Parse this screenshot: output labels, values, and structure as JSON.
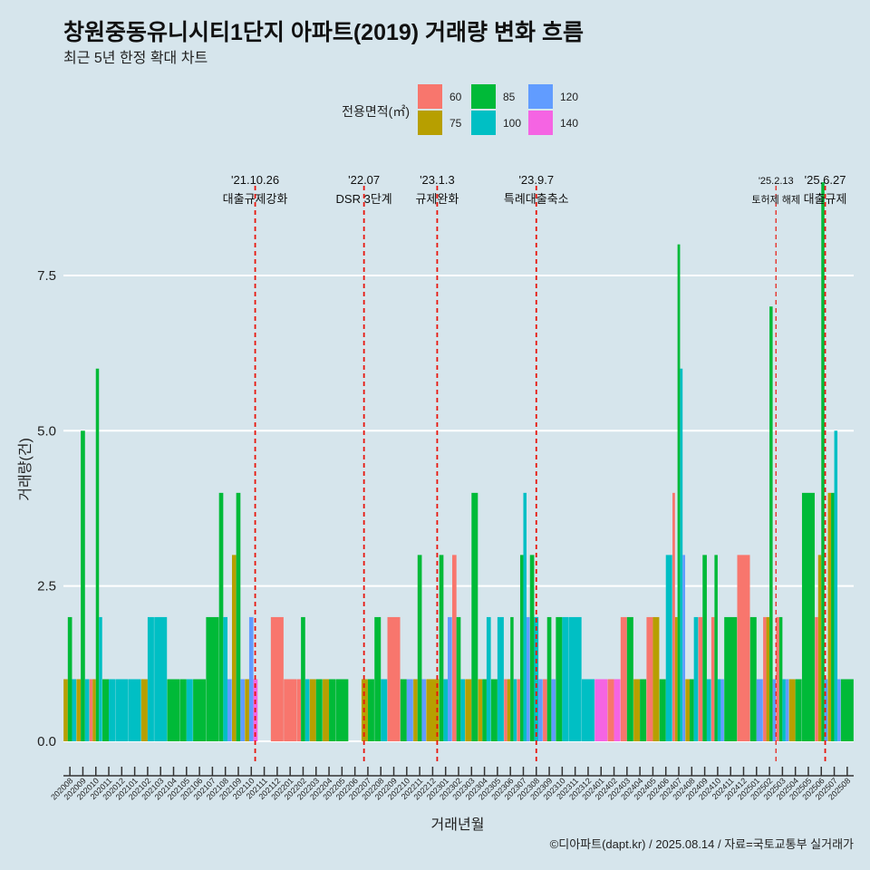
{
  "chart_data": {
    "type": "bar",
    "title": "창원중동유니시티1단지 아파트(2019) 거래량 변화 흐름",
    "subtitle": "최근 5년 한정 확대 차트",
    "xlabel": "거래년월",
    "ylabel": "거래량(건)",
    "caption": "©디아파트(dapt.kr) / 2025.08.14 / 자료=국토교통부 실거래가",
    "ylim": [
      -0.35,
      9.6
    ],
    "yticks": [
      0.0,
      2.5,
      5.0,
      7.5
    ],
    "ytick_labels": [
      "0.0",
      "2.5",
      "5.0",
      "7.5"
    ],
    "legend": {
      "title": "전용면적(㎡)",
      "position": "top",
      "entries": [
        {
          "label": "60",
          "color": "#f8766d"
        },
        {
          "label": "75",
          "color": "#b79f00"
        },
        {
          "label": "85",
          "color": "#00ba38"
        },
        {
          "label": "100",
          "color": "#00bfc4"
        },
        {
          "label": "120",
          "color": "#619cff"
        },
        {
          "label": "140",
          "color": "#f564e3"
        }
      ]
    },
    "categories": [
      "202008",
      "202009",
      "202010",
      "202011",
      "202012",
      "202101",
      "202102",
      "202103",
      "202104",
      "202105",
      "202106",
      "202107",
      "202108",
      "202109",
      "202110",
      "202111",
      "202112",
      "202201",
      "202202",
      "202203",
      "202204",
      "202205",
      "202206",
      "202207",
      "202208",
      "202209",
      "202210",
      "202211",
      "202212",
      "202301",
      "202302",
      "202303",
      "202304",
      "202305",
      "202306",
      "202307",
      "202308",
      "202309",
      "202310",
      "202311",
      "202312",
      "202401",
      "202402",
      "202403",
      "202404",
      "202405",
      "202406",
      "202407",
      "202408",
      "202409",
      "202410",
      "202411",
      "202412",
      "202501",
      "202502",
      "202503",
      "202504",
      "202505",
      "202506",
      "202507",
      "202508"
    ],
    "series": [
      {
        "name": "60",
        "values": [
          0,
          0,
          1,
          0,
          0,
          0,
          0,
          0,
          0,
          0,
          0,
          0,
          0,
          0,
          0,
          0,
          2,
          1,
          1,
          0,
          0,
          0,
          0,
          0,
          0,
          2,
          0,
          0,
          0,
          0,
          3,
          0,
          0,
          0,
          1,
          1,
          0,
          1,
          0,
          0,
          0,
          0,
          1,
          2,
          0,
          2,
          0,
          4,
          0,
          2,
          2,
          0,
          3,
          0,
          2,
          2,
          0,
          0,
          2,
          0,
          0
        ]
      },
      {
        "name": "75",
        "values": [
          1,
          1,
          1,
          0,
          0,
          0,
          1,
          0,
          0,
          0,
          0,
          0,
          0,
          3,
          1,
          0,
          0,
          0,
          0,
          1,
          1,
          0,
          0,
          1,
          0,
          0,
          0,
          1,
          1,
          0,
          0,
          1,
          1,
          0,
          1,
          0,
          0,
          0,
          0,
          0,
          0,
          0,
          0,
          0,
          1,
          2,
          0,
          2,
          1,
          0,
          0,
          0,
          0,
          0,
          2,
          0,
          1,
          0,
          3,
          4,
          0
        ]
      },
      {
        "name": "85",
        "values": [
          2,
          5,
          6,
          1,
          0,
          0,
          0,
          0,
          1,
          1,
          1,
          2,
          4,
          4,
          0,
          0,
          0,
          0,
          2,
          1,
          1,
          1,
          0,
          1,
          2,
          0,
          1,
          3,
          0,
          3,
          2,
          4,
          1,
          1,
          2,
          3,
          3,
          2,
          2,
          0,
          0,
          0,
          0,
          2,
          1,
          0,
          1,
          8,
          1,
          3,
          3,
          2,
          0,
          2,
          7,
          2,
          1,
          4,
          9,
          4,
          1
        ]
      },
      {
        "name": "100",
        "values": [
          1,
          1,
          2,
          1,
          1,
          1,
          2,
          2,
          0,
          1,
          0,
          0,
          2,
          0,
          0,
          0,
          0,
          0,
          1,
          0,
          0,
          0,
          0,
          0,
          1,
          0,
          0,
          0,
          0,
          1,
          1,
          0,
          2,
          2,
          1,
          4,
          2,
          0,
          2,
          2,
          1,
          0,
          0,
          0,
          0,
          0,
          3,
          6,
          2,
          1,
          1,
          0,
          0,
          0,
          0,
          1,
          0,
          0,
          0,
          5,
          0
        ]
      },
      {
        "name": "120",
        "values": [
          0,
          0,
          0,
          0,
          0,
          0,
          0,
          0,
          0,
          0,
          0,
          0,
          1,
          1,
          2,
          0,
          0,
          0,
          0,
          0,
          0,
          0,
          0,
          0,
          0,
          0,
          1,
          1,
          0,
          2,
          0,
          0,
          0,
          0,
          0,
          2,
          1,
          1,
          0,
          0,
          0,
          0,
          0,
          0,
          0,
          0,
          0,
          3,
          0,
          0,
          1,
          0,
          0,
          1,
          1,
          1,
          0,
          0,
          1,
          1,
          0
        ]
      },
      {
        "name": "140",
        "values": [
          0,
          0,
          0,
          0,
          0,
          0,
          0,
          0,
          0,
          0,
          0,
          0,
          0,
          0,
          1,
          0,
          0,
          0,
          0,
          0,
          0,
          0,
          0,
          0,
          0,
          0,
          0,
          0,
          0,
          0,
          0,
          0,
          0,
          0,
          0,
          0,
          0,
          0,
          0,
          0,
          0,
          1,
          1,
          0,
          0,
          0,
          0,
          0,
          0,
          0,
          0,
          0,
          0,
          0,
          0,
          0,
          0,
          0,
          0,
          0,
          0
        ]
      }
    ],
    "annotations": [
      {
        "x": 14.3,
        "date": "'21.10.26",
        "text": "대출규제강화",
        "size": "normal"
      },
      {
        "x": 22.7,
        "date": "'22.07",
        "text": "DSR 3단계",
        "size": "normal"
      },
      {
        "x": 28.35,
        "date": "'23.1.3",
        "text": "규제완화",
        "size": "normal"
      },
      {
        "x": 36.0,
        "date": "'23.9.7",
        "text": "특례대출축소",
        "size": "normal"
      },
      {
        "x": 54.5,
        "date": "'25.2.13",
        "text": "토허제 해제",
        "size": "small"
      },
      {
        "x": 58.3,
        "date": "'25.6.27",
        "text": "대출규제",
        "size": "normal"
      }
    ]
  }
}
